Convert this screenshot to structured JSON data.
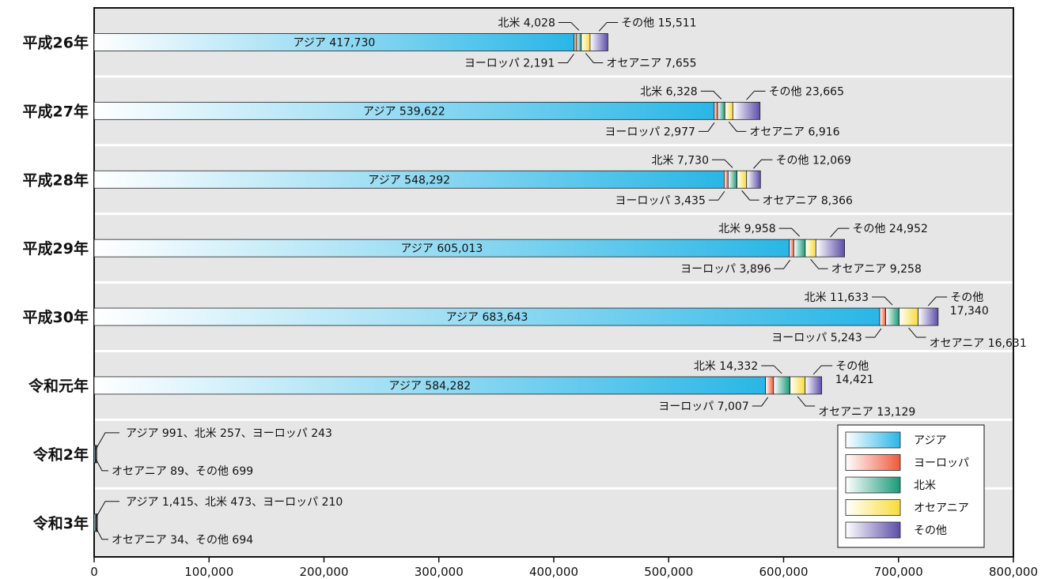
{
  "chart_data": {
    "type": "bar",
    "orientation": "horizontal",
    "stacked": true,
    "categories": [
      "平成26年",
      "平成27年",
      "平成28年",
      "平成29年",
      "平成30年",
      "令和元年",
      "令和2年",
      "令和3年"
    ],
    "series": [
      {
        "name": "アジア",
        "label": "アジア",
        "color": "#29b6e6",
        "values": [
          417730,
          539622,
          548292,
          605013,
          683643,
          584282,
          991,
          1415
        ]
      },
      {
        "name": "ヨーロッパ",
        "label": "ヨーロッパ",
        "color": "#ef5a3c",
        "values": [
          2191,
          2977,
          3435,
          3896,
          5243,
          7007,
          243,
          210
        ]
      },
      {
        "name": "北米",
        "label": "北米",
        "color": "#1a9a78",
        "values": [
          4028,
          6328,
          7730,
          9958,
          11633,
          14332,
          257,
          473
        ]
      },
      {
        "name": "オセアニア",
        "label": "オセアニア",
        "color": "#f8dc3c",
        "values": [
          7655,
          6916,
          8366,
          9258,
          16631,
          13129,
          89,
          34
        ]
      },
      {
        "name": "その他",
        "label": "その他",
        "color": "#5c4ea8",
        "values": [
          15511,
          23665,
          12069,
          24952,
          17340,
          14421,
          699,
          694
        ]
      }
    ],
    "xlim": [
      0,
      800000
    ],
    "xticks": [
      "0",
      "100,000",
      "200,000",
      "300,000",
      "400,000",
      "500,000",
      "600,000",
      "700,000",
      "800,000"
    ],
    "legend_position": "bottom-right",
    "grid": false,
    "annotations": {
      "asia": [
        "アジア 417,730",
        "アジア 539,622",
        "アジア 548,292",
        "アジア 605,013",
        "アジア 683,643",
        "アジア 584,282"
      ],
      "north_america": [
        "北米 4,028",
        "北米 6,328",
        "北米 7,730",
        "北米 9,958",
        "北米 11,633",
        "北米 14,332"
      ],
      "europe": [
        "ヨーロッパ 2,191",
        "ヨーロッパ 2,977",
        "ヨーロッパ 3,435",
        "ヨーロッパ 3,896",
        "ヨーロッパ 5,243",
        "ヨーロッパ 7,007"
      ],
      "oceania": [
        "オセアニア 7,655",
        "オセアニア 6,916",
        "オセアニア 8,366",
        "オセアニア 9,258",
        "オセアニア 16,631",
        "オセアニア 13,129"
      ],
      "other": [
        "その他 15,511",
        "その他 23,665",
        "その他 12,069",
        "その他 24,952",
        "その他",
        "その他"
      ],
      "other_value_line2": [
        "17,340",
        "14,421"
      ],
      "small_top": [
        "アジア 991、北米 257、ヨーロッパ 243",
        "アジア 1,415、北米 473、ヨーロッパ 210"
      ],
      "small_bottom": [
        "オセアニア 89、その他 699",
        "オセアニア 34、その他 694"
      ]
    }
  }
}
